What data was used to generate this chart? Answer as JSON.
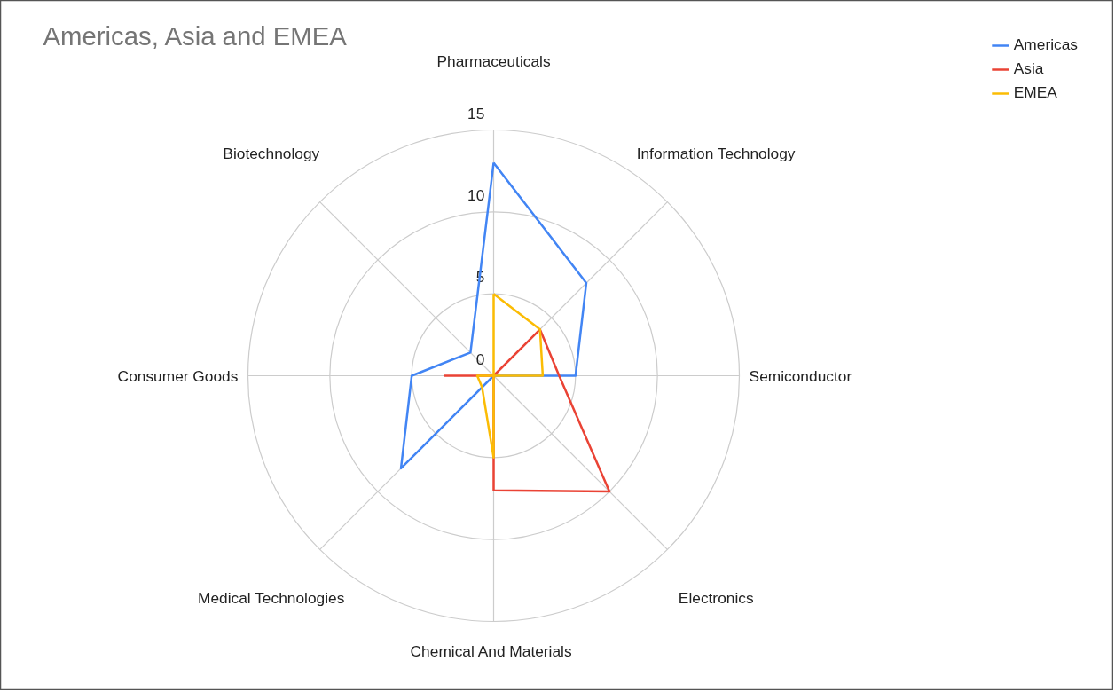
{
  "chart_data": {
    "type": "radar",
    "title": "Americas, Asia and EMEA",
    "categories": [
      "Pharmaceuticals",
      "Information Technology",
      "Semiconductor",
      "Electronics",
      "Chemical  And Materials",
      "Medical Technologies",
      "Consumer Goods",
      "Biotechnology"
    ],
    "series": [
      {
        "name": "Americas",
        "color": "#4285f4",
        "values": [
          13,
          8,
          5,
          0,
          0,
          8,
          5,
          2
        ]
      },
      {
        "name": "Asia",
        "color": "#ea4335",
        "values": [
          0,
          4,
          4,
          10,
          7,
          0,
          3,
          0
        ]
      },
      {
        "name": "EMEA",
        "color": "#fbbc04",
        "values": [
          5,
          4,
          3,
          0,
          5,
          1,
          1,
          0
        ]
      }
    ],
    "ylim": [
      0,
      15
    ],
    "yticks": [
      0,
      5,
      10,
      15
    ],
    "grid": true,
    "legend": "top right"
  }
}
